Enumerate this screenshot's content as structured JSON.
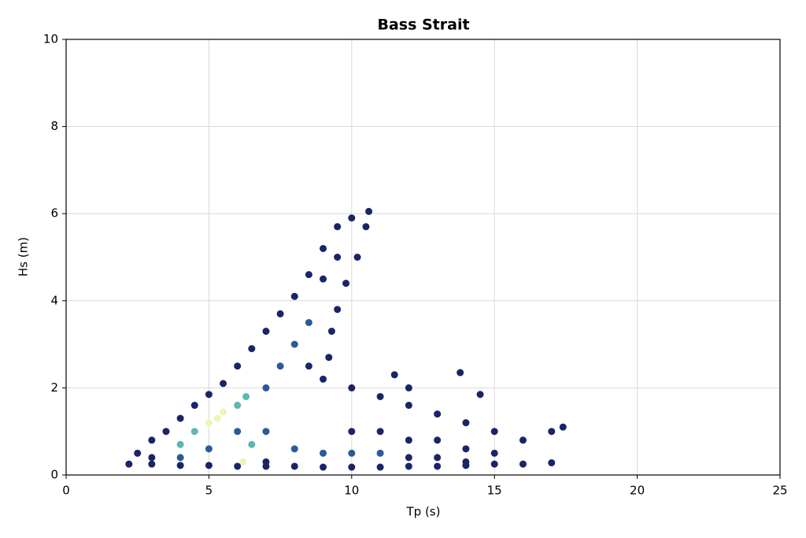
{
  "chart_data": {
    "type": "scatter",
    "title": "Bass Strait",
    "x_label": "Tp (s)",
    "y_label": "Hs (m)",
    "x": [
      2.2,
      3,
      4,
      5,
      6,
      7,
      8,
      9,
      10,
      11,
      12,
      13,
      14,
      15,
      16,
      17,
      2.5,
      3,
      3.5,
      4,
      4.5,
      5,
      5.5,
      6,
      6.5,
      7,
      7.5,
      8,
      8.5,
      9,
      9.5,
      10,
      10.6,
      10.5,
      10.2,
      9.8,
      9.5,
      9.3,
      9.2,
      9,
      8.5,
      9,
      8,
      9.5,
      7.5,
      8.5,
      7,
      10,
      11,
      12,
      13,
      14,
      15,
      10,
      11,
      12,
      13,
      14,
      15,
      16,
      17,
      17.4,
      11,
      12,
      13,
      14,
      14.5,
      13.8,
      12,
      11.5,
      5,
      5.5,
      5.3,
      4.5,
      4,
      6,
      6.2,
      6.3,
      6,
      5,
      4,
      3,
      7,
      8,
      9,
      10,
      7,
      6.5
    ],
    "values": [
      0.25,
      0.25,
      0.22,
      0.22,
      0.2,
      0.2,
      0.2,
      0.18,
      0.18,
      0.18,
      0.2,
      0.2,
      0.22,
      0.25,
      0.25,
      0.28,
      0.5,
      0.8,
      1.0,
      1.3,
      1.6,
      1.85,
      2.1,
      2.5,
      2.9,
      3.3,
      3.7,
      4.1,
      4.6,
      5.2,
      5.7,
      5.9,
      6.05,
      5.7,
      5.0,
      4.4,
      3.8,
      3.3,
      2.7,
      2.2,
      3.5,
      4.5,
      3,
      5,
      2.5,
      2.5,
      2,
      2.0,
      1.8,
      1.6,
      1.4,
      1.2,
      1.0,
      1.0,
      1.0,
      0.8,
      0.8,
      0.6,
      0.5,
      0.8,
      1.0,
      1.1,
      0.5,
      0.4,
      0.4,
      0.3,
      1.85,
      2.35,
      2.0,
      2.3,
      1.2,
      1.45,
      1.3,
      1.0,
      0.7,
      1.6,
      0.3,
      1.8,
      1.0,
      0.6,
      0.4,
      0.4,
      1.0,
      0.6,
      0.5,
      0.5,
      0.3,
      0.7
    ],
    "colors": [
      "#1a2466",
      "#1a2466",
      "#1a2466",
      "#1a2466",
      "#1a2466",
      "#1a2466",
      "#1a2466",
      "#1a2466",
      "#1a2466",
      "#1a2466",
      "#1a2466",
      "#1a2466",
      "#1a2466",
      "#1a2466",
      "#1a2466",
      "#1a2466",
      "#1a2466",
      "#1a2466",
      "#1a2466",
      "#1a2466",
      "#1a2466",
      "#1a2466",
      "#1a2466",
      "#1a2466",
      "#1a2466",
      "#1a2466",
      "#1a2466",
      "#1a2466",
      "#1a2466",
      "#1a2466",
      "#1a2466",
      "#1a2466",
      "#1a2466",
      "#1a2466",
      "#1a2466",
      "#1a2466",
      "#1a2466",
      "#1a2466",
      "#1a2466",
      "#1a2466",
      "#2a5a9a",
      "#1a2466",
      "#2a5a9a",
      "#1a2466",
      "#2a5a9a",
      "#1a2466",
      "#2a5a9a",
      "#1a2466",
      "#1a2466",
      "#1a2466",
      "#1a2466",
      "#1a2466",
      "#1a2466",
      "#1a2466",
      "#1a2466",
      "#1a2466",
      "#1a2466",
      "#1a2466",
      "#1a2466",
      "#1a2466",
      "#1a2466",
      "#1a2466",
      "#2a5a9a",
      "#1a2466",
      "#1a2466",
      "#1a2466",
      "#1a2466",
      "#1a2466",
      "#1a2466",
      "#1a2466",
      "#eef5b4",
      "#eef5b4",
      "#eef5b4",
      "#5fb7b0",
      "#5fb7b0",
      "#5fb7b0",
      "#eef5b4",
      "#5fb7b0",
      "#2a5a9a",
      "#2a5a9a",
      "#2a5a9a",
      "#1a2466",
      "#2a5a9a",
      "#2a5a9a",
      "#2a5a9a",
      "#2a5a9a",
      "#1a2466",
      "#5fb7b0"
    ],
    "xlim": [
      0,
      25
    ],
    "xticks": [
      0,
      5,
      10,
      15,
      20,
      25
    ],
    "ylim": [
      0,
      10
    ],
    "yticks": [
      0,
      2,
      4,
      6,
      8,
      10
    ],
    "grid": true
  }
}
